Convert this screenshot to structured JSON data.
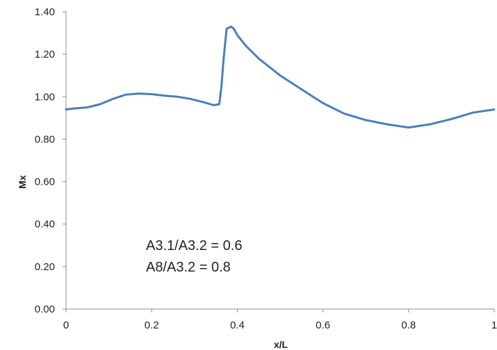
{
  "chart_data": {
    "type": "line",
    "title": "",
    "xlabel": "x/L",
    "ylabel": "Mx",
    "xlim": [
      0,
      1
    ],
    "ylim": [
      0,
      1.4
    ],
    "x_ticks": [
      "0",
      "0.2",
      "0.4",
      "0.6",
      "0.8",
      "1"
    ],
    "y_ticks": [
      "0.00",
      "0.20",
      "0.40",
      "0.60",
      "0.80",
      "1.00",
      "1.20",
      "1.40"
    ],
    "grid": false,
    "series": [
      {
        "color": "#4a7ebb",
        "x": [
          0,
          0.02,
          0.05,
          0.08,
          0.11,
          0.14,
          0.17,
          0.2,
          0.23,
          0.26,
          0.29,
          0.32,
          0.345,
          0.358,
          0.363,
          0.368,
          0.375,
          0.385,
          0.392,
          0.4,
          0.42,
          0.45,
          0.5,
          0.55,
          0.6,
          0.65,
          0.7,
          0.75,
          0.8,
          0.85,
          0.9,
          0.95,
          1.0
        ],
        "y": [
          0.94,
          0.945,
          0.95,
          0.965,
          0.99,
          1.01,
          1.015,
          1.012,
          1.005,
          1.0,
          0.99,
          0.975,
          0.96,
          0.965,
          1.05,
          1.18,
          1.32,
          1.33,
          1.32,
          1.29,
          1.24,
          1.18,
          1.1,
          1.035,
          0.97,
          0.92,
          0.89,
          0.87,
          0.855,
          0.87,
          0.895,
          0.925,
          0.94
        ]
      }
    ]
  },
  "annotations": [
    "A3.1/A3.2 = 0.6",
    "A8/A3.2 = 0.8"
  ]
}
